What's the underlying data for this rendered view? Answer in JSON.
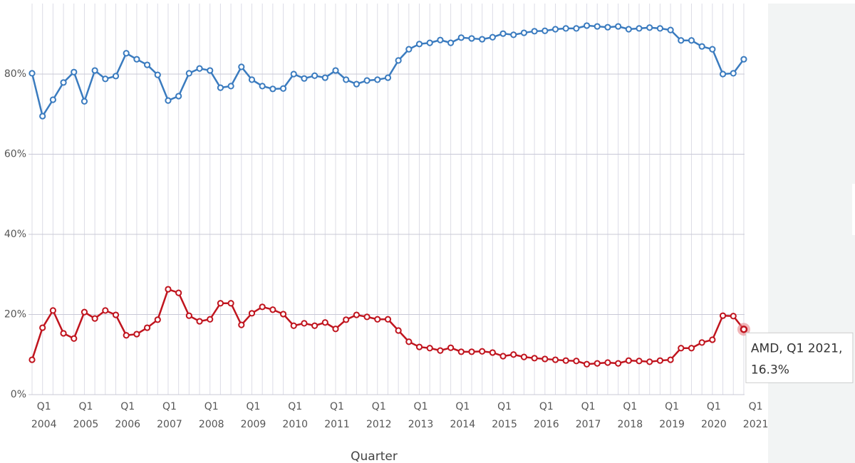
{
  "chart_data": {
    "type": "line",
    "x_label": "Quarter",
    "categories": [
      null,
      [
        "Q1",
        "2004"
      ],
      null,
      null,
      null,
      [
        "Q1",
        "2005"
      ],
      null,
      null,
      null,
      [
        "Q1",
        "2006"
      ],
      null,
      null,
      null,
      [
        "Q1",
        "2007"
      ],
      null,
      null,
      null,
      [
        "Q1",
        "2008"
      ],
      null,
      null,
      null,
      [
        "Q1",
        "2009"
      ],
      null,
      null,
      null,
      [
        "Q1",
        "2010"
      ],
      null,
      null,
      null,
      [
        "Q1",
        "2011"
      ],
      null,
      null,
      null,
      [
        "Q1",
        "2012"
      ],
      null,
      null,
      null,
      [
        "Q1",
        "2013"
      ],
      null,
      null,
      null,
      [
        "Q1",
        "2014"
      ],
      null,
      null,
      null,
      [
        "Q1",
        "2015"
      ],
      null,
      null,
      null,
      [
        "Q1",
        "2016"
      ],
      null,
      null,
      null,
      [
        "Q1",
        "2017"
      ],
      null,
      null,
      null,
      [
        "Q1",
        "2018"
      ],
      null,
      null,
      null,
      [
        "Q1",
        "2019"
      ],
      null,
      null,
      null,
      [
        "Q1",
        "2020"
      ],
      null,
      null,
      null,
      [
        "Q1",
        "2021"
      ]
    ],
    "series": [
      {
        "color": "#3a7bbf",
        "values": [
          80.2,
          69.5,
          73.6,
          77.9,
          80.5,
          73.2,
          80.9,
          78.8,
          79.5,
          85.2,
          83.7,
          82.3,
          79.8,
          73.4,
          74.5,
          80.2,
          81.4,
          80.9,
          76.6,
          77.0,
          81.8,
          78.6,
          77.0,
          76.3,
          76.4,
          80.0,
          78.9,
          79.6,
          79.1,
          80.9,
          78.6,
          77.5,
          78.4,
          78.6,
          79.1,
          83.4,
          86.2,
          87.5,
          87.8,
          88.5,
          87.8,
          89.1,
          88.9,
          88.7,
          89.2,
          90.1,
          89.8,
          90.3,
          90.7,
          90.8,
          91.2,
          91.4,
          91.4,
          92.1,
          91.9,
          91.7,
          91.9,
          91.2,
          91.4,
          91.6,
          91.4,
          91.0,
          88.4,
          88.4,
          86.9,
          86.2,
          80.0,
          80.2,
          83.7,
          null
        ]
      },
      {
        "name": "AMD",
        "color": "#c0141e",
        "values": [
          8.7,
          16.7,
          21.0,
          15.3,
          14.0,
          20.6,
          19.0,
          21.0,
          19.9,
          14.8,
          15.1,
          16.7,
          18.7,
          26.3,
          25.4,
          19.7,
          18.3,
          18.8,
          22.8,
          22.8,
          17.4,
          20.3,
          21.9,
          21.2,
          20.1,
          17.2,
          17.8,
          17.2,
          18.0,
          16.4,
          18.7,
          19.9,
          19.4,
          18.8,
          18.8,
          16.0,
          13.2,
          11.9,
          11.6,
          11.0,
          11.7,
          10.7,
          10.7,
          10.8,
          10.5,
          9.6,
          10.0,
          9.4,
          9.1,
          8.9,
          8.7,
          8.5,
          8.4,
          7.6,
          7.8,
          8.0,
          7.8,
          8.5,
          8.4,
          8.2,
          8.5,
          8.7,
          11.6,
          11.6,
          13.0,
          13.7,
          19.7,
          19.6,
          16.3,
          null
        ]
      }
    ],
    "ylim": [
      0,
      97.6
    ],
    "yticks": [
      {
        "value": 0,
        "label": "0%"
      },
      {
        "value": 20,
        "label": "20%"
      },
      {
        "value": 40,
        "label": "40%"
      },
      {
        "value": 60,
        "label": "60%"
      },
      {
        "value": 80,
        "label": "80%"
      }
    ],
    "grid": true,
    "tooltip": {
      "lines": [
        "AMD, Q1 2021,",
        "16.3%"
      ]
    }
  }
}
